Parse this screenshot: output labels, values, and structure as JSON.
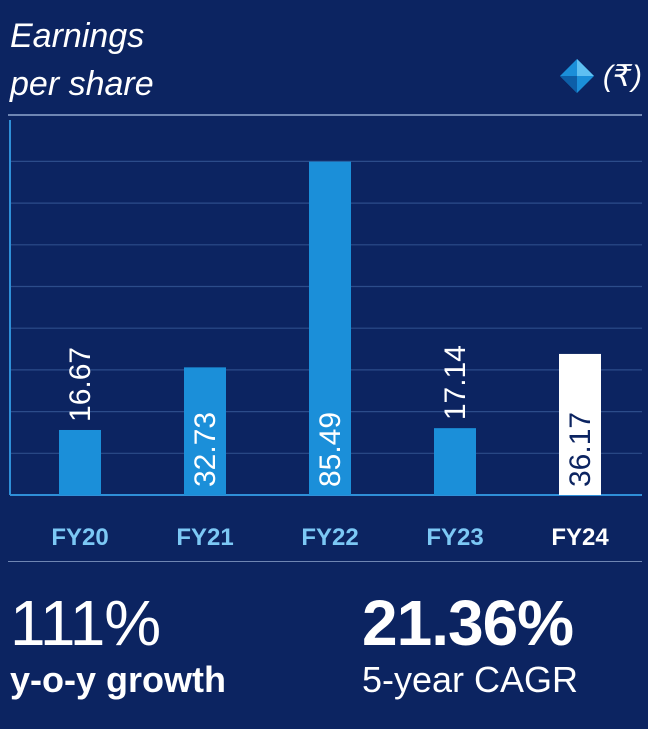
{
  "header": {
    "title_line1": "Earnings",
    "title_line2": "per share",
    "unit": "(₹)",
    "unit_icon": "diamond-logo-icon"
  },
  "colors": {
    "background": "#0c2461",
    "bar": "#1b8fd9",
    "bar_highlight": "#ffffff",
    "axis": "#2f8fd8",
    "grid": "#2c4c8a",
    "tick_label": "#7cc8f5",
    "tick_label_highlight": "#ffffff",
    "rule": "#6f86b3"
  },
  "chart_data": {
    "type": "bar",
    "title": "Earnings per share",
    "unit": "₹",
    "categories": [
      "FY20",
      "FY21",
      "FY22",
      "FY23",
      "FY24"
    ],
    "values": [
      16.67,
      32.73,
      85.49,
      17.14,
      36.17
    ],
    "value_labels": [
      "16.67",
      "32.73",
      "85.49",
      "17.14",
      "36.17"
    ],
    "highlight_index": 4,
    "ylim": [
      0,
      90
    ],
    "grid": true,
    "xlabel": "",
    "ylabel": ""
  },
  "stats": [
    {
      "value": "111%",
      "label": "y-o-y growth"
    },
    {
      "value": "21.36%",
      "label": "5-year CAGR"
    }
  ]
}
